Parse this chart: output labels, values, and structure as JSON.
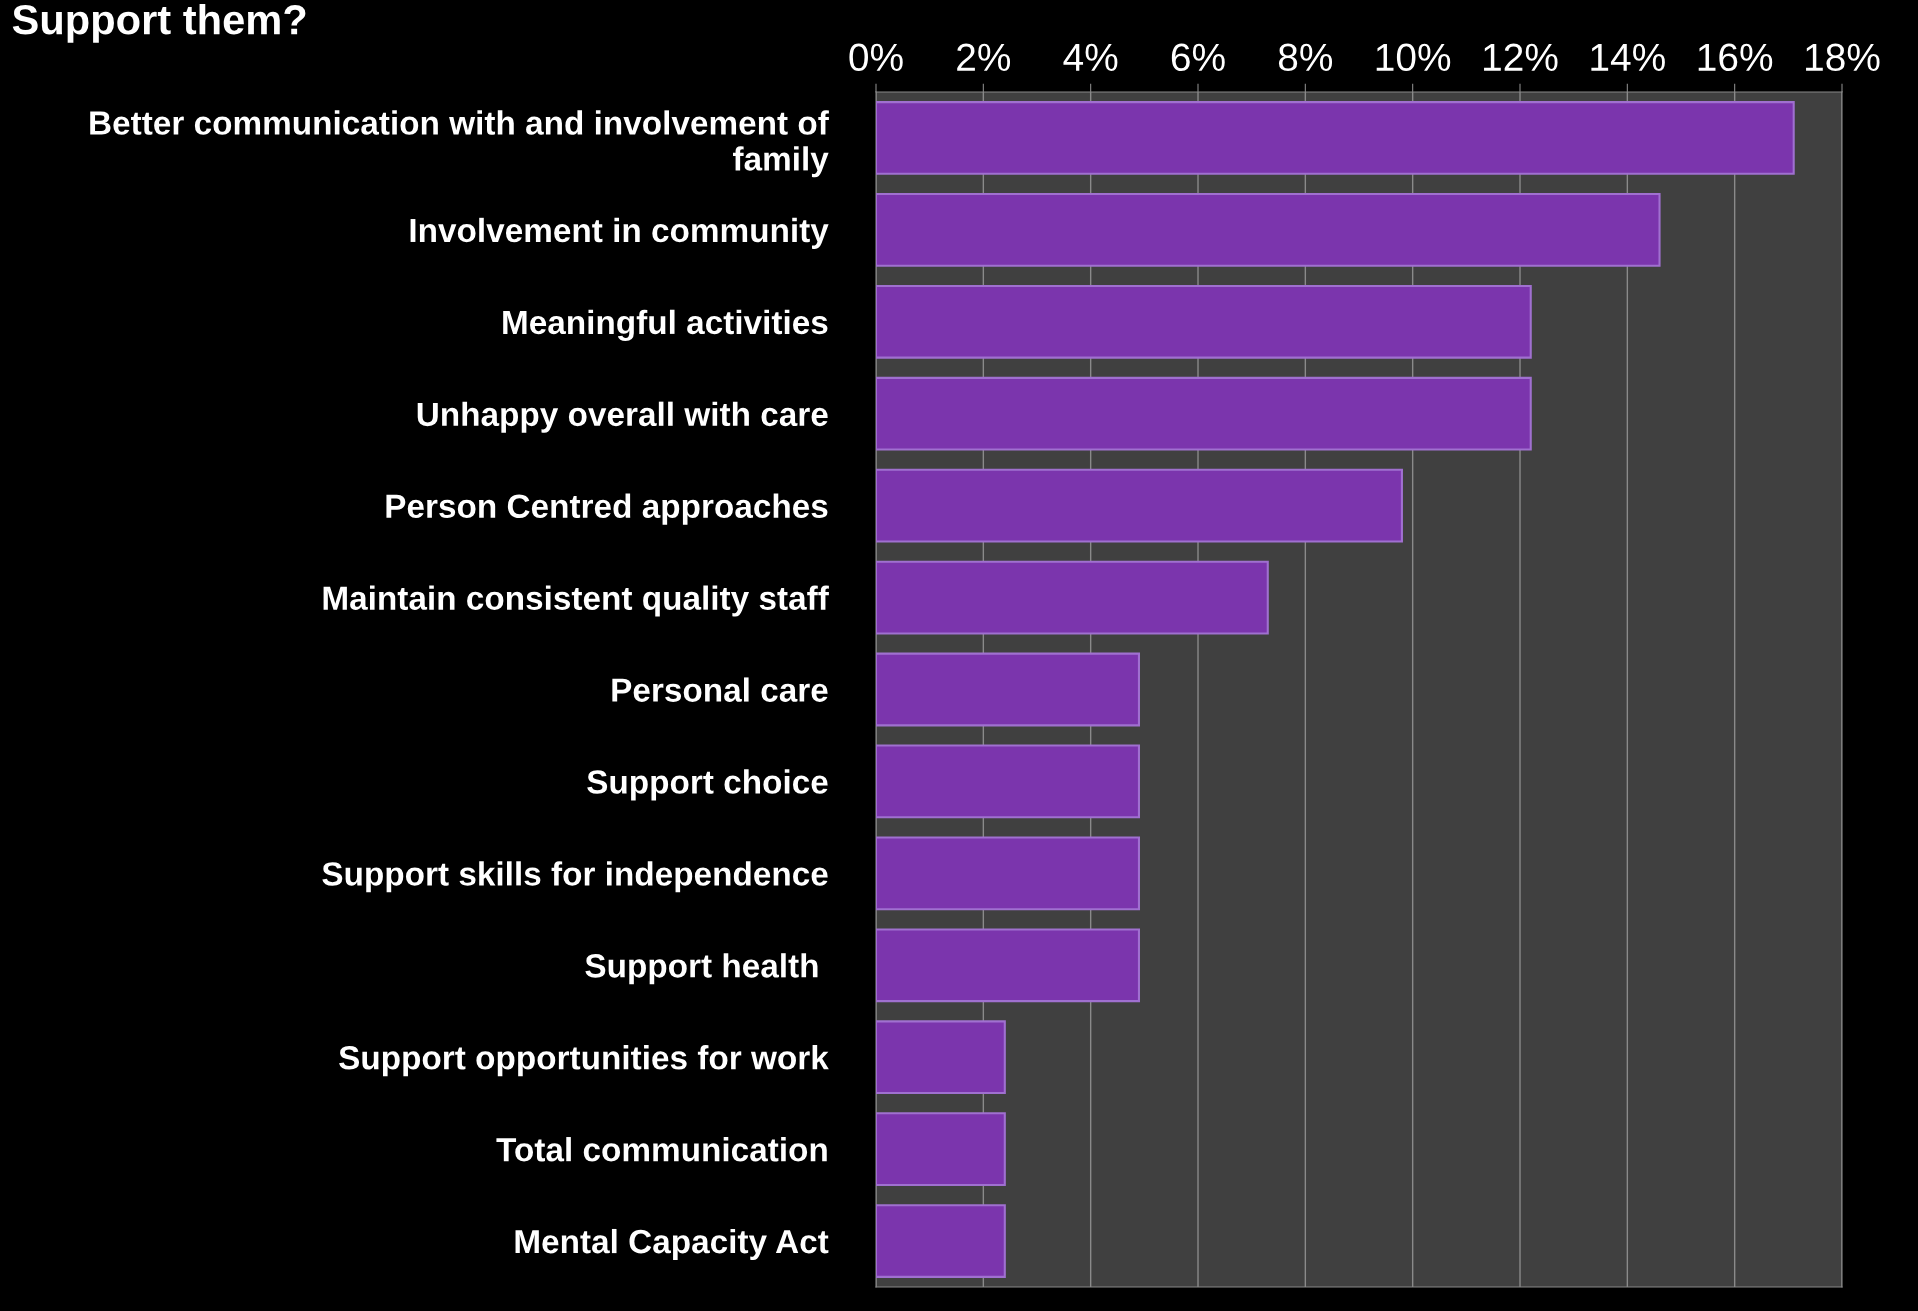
{
  "chart_data": {
    "type": "bar",
    "orientation": "horizontal",
    "title": "Support them?",
    "categories": [
      "Better communication with and involvement of family",
      "Involvement in community",
      "Meaningful activities",
      "Unhappy overall with care",
      "Person Centred approaches",
      "Maintain consistent quality staff",
      "Personal care",
      "Support choice",
      "Support skills for independence",
      "Support health ",
      "Support opportunities for work",
      "Total communication",
      "Mental Capacity Act"
    ],
    "values": [
      17.1,
      14.6,
      12.2,
      12.2,
      9.8,
      7.3,
      4.9,
      4.9,
      4.9,
      4.9,
      2.4,
      2.4,
      2.4
    ],
    "color": "#7b35ad",
    "xlim": [
      0,
      18
    ],
    "xticks": [
      {
        "value": 0,
        "label": "0%"
      },
      {
        "value": 2,
        "label": "2%"
      },
      {
        "value": 4,
        "label": "4%"
      },
      {
        "value": 6,
        "label": "6%"
      },
      {
        "value": 8,
        "label": "8%"
      },
      {
        "value": 10,
        "label": "10%"
      },
      {
        "value": 12,
        "label": "12%"
      },
      {
        "value": 14,
        "label": "14%"
      },
      {
        "value": 16,
        "label": "16%"
      },
      {
        "value": 18,
        "label": "18%"
      }
    ],
    "grid": "x",
    "legend": false
  }
}
